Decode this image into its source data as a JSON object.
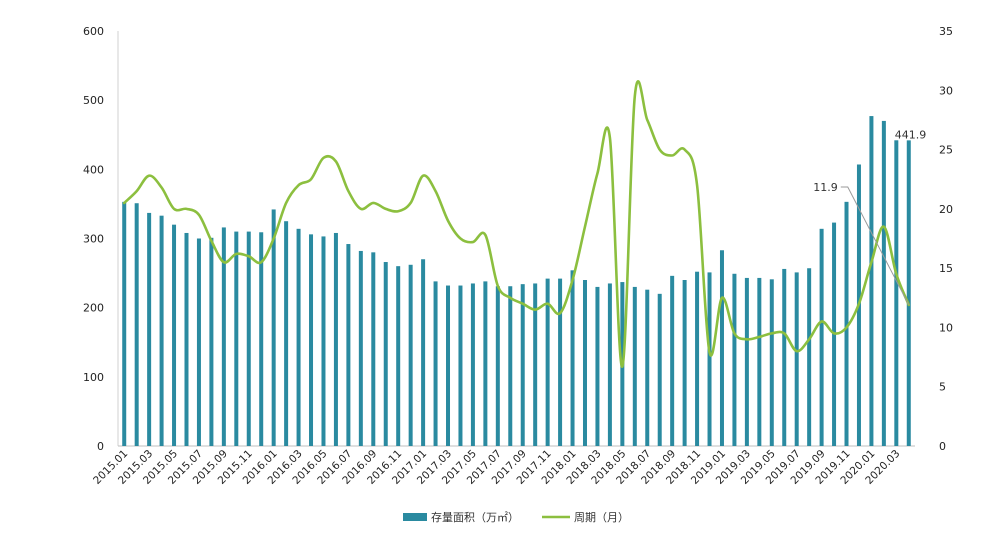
{
  "chart_data": {
    "type": "bar",
    "title": "",
    "xlabel": "",
    "categories": [
      "2015.01",
      "2015.02",
      "2015.03",
      "2015.04",
      "2015.05",
      "2015.06",
      "2015.07",
      "2015.08",
      "2015.09",
      "2015.10",
      "2015.11",
      "2015.12",
      "2016.01",
      "2016.02",
      "2016.03",
      "2016.04",
      "2016.05",
      "2016.06",
      "2016.07",
      "2016.08",
      "2016.09",
      "2016.10",
      "2016.11",
      "2016.12",
      "2017.01",
      "2017.02",
      "2017.03",
      "2017.04",
      "2017.05",
      "2017.06",
      "2017.07",
      "2017.08",
      "2017.09",
      "2017.10",
      "2017.11",
      "2017.12",
      "2018.01",
      "2018.02",
      "2018.03",
      "2018.04",
      "2018.05",
      "2018.06",
      "2018.07",
      "2018.08",
      "2018.09",
      "2018.10",
      "2018.11",
      "2018.12",
      "2019.01",
      "2019.02",
      "2019.03",
      "2019.04",
      "2019.05",
      "2019.06",
      "2019.07",
      "2019.08",
      "2019.09",
      "2019.10",
      "2019.11",
      "2019.12",
      "2020.01",
      "2020.02",
      "2020.03",
      "2020.04"
    ],
    "x_tick_labels": [
      "2015.01",
      "2015.03",
      "2015.05",
      "2015.07",
      "2015.09",
      "2015.11",
      "2016.01",
      "2016.03",
      "2016.05",
      "2016.07",
      "2016.09",
      "2016.11",
      "2017.01",
      "2017.03",
      "2017.05",
      "2017.07",
      "2017.09",
      "2017.11",
      "2018.01",
      "2018.03",
      "2018.05",
      "2018.07",
      "2018.09",
      "2018.11",
      "2019.01",
      "2019.03",
      "2019.05",
      "2019.07",
      "2019.09",
      "2019.11",
      "2020.01",
      "2020.03"
    ],
    "series": [
      {
        "name": "存量面积（万㎡）",
        "type": "bar",
        "axis": "left",
        "color": "#2a8aa0",
        "values": [
          353,
          351,
          337,
          333,
          320,
          308,
          300,
          301,
          316,
          310,
          310,
          309,
          342,
          325,
          314,
          306,
          303,
          308,
          292,
          282,
          280,
          266,
          260,
          262,
          270,
          238,
          232,
          232,
          235,
          238,
          231,
          231,
          234,
          235,
          242,
          242,
          254,
          240,
          230,
          235,
          237,
          230,
          226,
          220,
          246,
          240,
          252,
          251,
          283,
          249,
          243,
          243,
          241,
          256,
          251,
          257,
          314,
          323,
          353,
          407,
          477,
          470,
          442,
          441.9
        ]
      },
      {
        "name": "周期（月）",
        "type": "line",
        "axis": "right",
        "color": "#8cbf3f",
        "values": [
          20.5,
          21.5,
          22.8,
          21.8,
          20.0,
          20.0,
          19.5,
          17.3,
          15.5,
          16.2,
          16.0,
          15.5,
          17.5,
          20.5,
          22.0,
          22.5,
          24.3,
          24.0,
          21.5,
          20.0,
          20.5,
          20.0,
          19.8,
          20.5,
          22.8,
          21.5,
          19.0,
          17.5,
          17.2,
          17.8,
          13.5,
          12.5,
          12.0,
          11.5,
          12.0,
          11.2,
          14.0,
          18.5,
          23.0,
          26.0,
          6.7,
          29.5,
          27.5,
          25.0,
          24.5,
          25.0,
          22.0,
          7.9,
          12.5,
          9.5,
          9.0,
          9.2,
          9.5,
          9.5,
          8.0,
          9.0,
          10.5,
          9.5,
          10.0,
          12.0,
          15.5,
          18.5,
          14.5,
          11.9
        ]
      }
    ],
    "y_left": {
      "ylim": [
        0,
        600
      ],
      "ticks": [
        "0",
        "100",
        "200",
        "300",
        "400",
        "500",
        "600"
      ]
    },
    "y_right": {
      "ylim": [
        0,
        35
      ],
      "ticks": [
        "0",
        "5",
        "10",
        "15",
        "20",
        "25",
        "30",
        "35"
      ]
    },
    "grid": false,
    "legend_position": "bottom-center",
    "annotations": [
      {
        "text": "441.9",
        "series": 0,
        "index": 63
      },
      {
        "text": "11.9",
        "series": 1,
        "index": 63
      }
    ]
  }
}
